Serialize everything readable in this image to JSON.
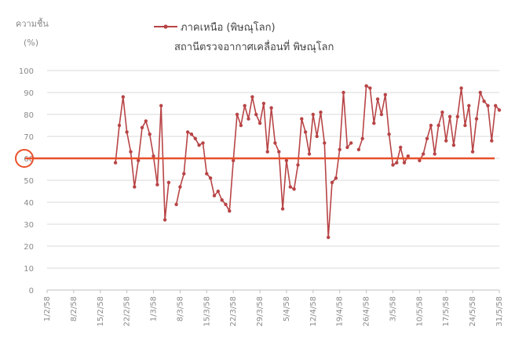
{
  "chart_data": {
    "type": "line",
    "legend_label": "ภาคเหนือ (พิษณุโลก)",
    "subtitle": "สถานีตรวจอากาศเคลื่อนที่ พิษณุโลก",
    "ylabel": "ความชื้น",
    "yunit": "(%)",
    "ylim": [
      0,
      100
    ],
    "yticks": [
      0,
      10,
      20,
      30,
      40,
      50,
      60,
      70,
      80,
      90,
      100
    ],
    "xlim": [
      "2015-02-01",
      "2015-05-31"
    ],
    "xtick_labels": [
      "1/2/58",
      "8/2/58",
      "15/2/58",
      "22/2/58",
      "1/3/58",
      "8/3/58",
      "15/3/58",
      "22/3/58",
      "29/3/58",
      "5/4/58",
      "12/4/58",
      "19/4/58",
      "26/4/58",
      "3/5/58",
      "10/5/58",
      "17/5/58",
      "24/5/58",
      "31/5/58"
    ],
    "xtick_dates": [
      "2015-02-01",
      "2015-02-08",
      "2015-02-15",
      "2015-02-22",
      "2015-03-01",
      "2015-03-08",
      "2015-03-15",
      "2015-03-22",
      "2015-03-29",
      "2015-04-05",
      "2015-04-12",
      "2015-04-19",
      "2015-04-26",
      "2015-05-03",
      "2015-05-10",
      "2015-05-17",
      "2015-05-24",
      "2015-05-31"
    ],
    "threshold": 60,
    "threshold_color": "#e8502a",
    "series_color": "#b84446",
    "series": [
      {
        "segments": [
          [
            [
              "2015-02-19",
              58
            ],
            [
              "2015-02-20",
              75
            ],
            [
              "2015-02-21",
              88
            ],
            [
              "2015-02-22",
              72
            ],
            [
              "2015-02-23",
              63
            ],
            [
              "2015-02-24",
              47
            ],
            [
              "2015-02-25",
              59
            ],
            [
              "2015-02-26",
              74
            ],
            [
              "2015-02-27",
              77
            ],
            [
              "2015-02-28",
              71
            ],
            [
              "2015-03-01",
              61
            ],
            [
              "2015-03-02",
              48
            ],
            [
              "2015-03-03",
              84
            ],
            [
              "2015-03-04",
              32
            ],
            [
              "2015-03-05",
              49
            ]
          ],
          [
            [
              "2015-03-07",
              39
            ],
            [
              "2015-03-08",
              47
            ],
            [
              "2015-03-09",
              53
            ],
            [
              "2015-03-10",
              72
            ],
            [
              "2015-03-11",
              71
            ],
            [
              "2015-03-12",
              69
            ],
            [
              "2015-03-13",
              66
            ],
            [
              "2015-03-14",
              67
            ],
            [
              "2015-03-15",
              53
            ],
            [
              "2015-03-16",
              51
            ],
            [
              "2015-03-17",
              43
            ],
            [
              "2015-03-18",
              45
            ],
            [
              "2015-03-19",
              41
            ],
            [
              "2015-03-20",
              39
            ],
            [
              "2015-03-21",
              36
            ],
            [
              "2015-03-22",
              59
            ],
            [
              "2015-03-23",
              80
            ],
            [
              "2015-03-24",
              75
            ],
            [
              "2015-03-25",
              84
            ],
            [
              "2015-03-26",
              78
            ],
            [
              "2015-03-27",
              88
            ],
            [
              "2015-03-28",
              80
            ],
            [
              "2015-03-29",
              76
            ],
            [
              "2015-03-30",
              85
            ],
            [
              "2015-03-31",
              63
            ],
            [
              "2015-04-01",
              83
            ],
            [
              "2015-04-02",
              67
            ],
            [
              "2015-04-03",
              63
            ],
            [
              "2015-04-04",
              37
            ],
            [
              "2015-04-05",
              59
            ],
            [
              "2015-04-06",
              47
            ],
            [
              "2015-04-07",
              46
            ],
            [
              "2015-04-08",
              57
            ],
            [
              "2015-04-09",
              78
            ],
            [
              "2015-04-10",
              72
            ],
            [
              "2015-04-11",
              62
            ],
            [
              "2015-04-12",
              80
            ],
            [
              "2015-04-13",
              70
            ],
            [
              "2015-04-14",
              81
            ],
            [
              "2015-04-15",
              67
            ],
            [
              "2015-04-16",
              24
            ],
            [
              "2015-04-17",
              49
            ],
            [
              "2015-04-18",
              51
            ],
            [
              "2015-04-19",
              64
            ],
            [
              "2015-04-20",
              90
            ],
            [
              "2015-04-21",
              65
            ],
            [
              "2015-04-22",
              67
            ]
          ],
          [
            [
              "2015-04-24",
              64
            ],
            [
              "2015-04-25",
              69
            ],
            [
              "2015-04-26",
              93
            ],
            [
              "2015-04-27",
              92
            ],
            [
              "2015-04-28",
              76
            ],
            [
              "2015-04-29",
              87
            ],
            [
              "2015-04-30",
              80
            ],
            [
              "2015-05-01",
              89
            ],
            [
              "2015-05-02",
              71
            ],
            [
              "2015-05-03",
              57
            ],
            [
              "2015-05-04",
              58
            ],
            [
              "2015-05-05",
              65
            ],
            [
              "2015-05-06",
              58
            ],
            [
              "2015-05-07",
              61
            ]
          ],
          [
            [
              "2015-05-10",
              59
            ],
            [
              "2015-05-11",
              62
            ],
            [
              "2015-05-12",
              69
            ],
            [
              "2015-05-13",
              75
            ],
            [
              "2015-05-14",
              62
            ],
            [
              "2015-05-15",
              75
            ],
            [
              "2015-05-16",
              81
            ],
            [
              "2015-05-17",
              68
            ],
            [
              "2015-05-18",
              79
            ],
            [
              "2015-05-19",
              66
            ],
            [
              "2015-05-20",
              79
            ],
            [
              "2015-05-21",
              92
            ],
            [
              "2015-05-22",
              75
            ],
            [
              "2015-05-23",
              84
            ],
            [
              "2015-05-24",
              63
            ],
            [
              "2015-05-25",
              78
            ],
            [
              "2015-05-26",
              90
            ],
            [
              "2015-05-27",
              86
            ],
            [
              "2015-05-28",
              84
            ],
            [
              "2015-05-29",
              68
            ],
            [
              "2015-05-30",
              84
            ],
            [
              "2015-05-31",
              82
            ]
          ]
        ]
      }
    ]
  }
}
